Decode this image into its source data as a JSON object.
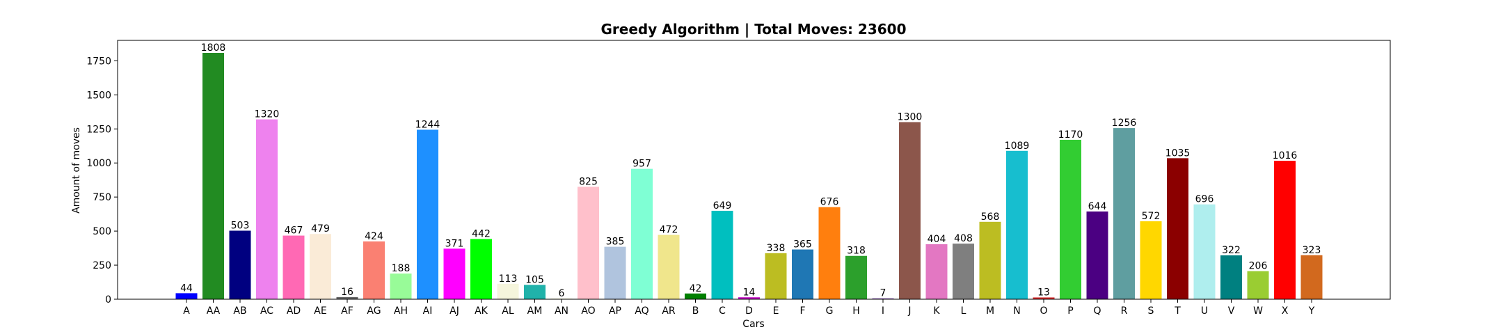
{
  "chart_data": {
    "type": "bar",
    "title": "Greedy Algorithm | Total Moves: 23600",
    "xlabel": "Cars",
    "ylabel": "Amount of moves",
    "ylim": [
      0,
      1900
    ],
    "yticks": [
      0,
      250,
      500,
      750,
      1000,
      1250,
      1500,
      1750
    ],
    "grid": false,
    "legend": "none",
    "categories": [
      "A",
      "AA",
      "AB",
      "AC",
      "AD",
      "AE",
      "AF",
      "AG",
      "AH",
      "AI",
      "AJ",
      "AK",
      "AL",
      "AM",
      "AN",
      "AO",
      "AP",
      "AQ",
      "AR",
      "B",
      "C",
      "D",
      "E",
      "F",
      "G",
      "H",
      "I",
      "J",
      "K",
      "L",
      "M",
      "N",
      "O",
      "P",
      "Q",
      "R",
      "S",
      "T",
      "U",
      "V",
      "W",
      "X",
      "Y"
    ],
    "values": [
      44,
      1808,
      503,
      1320,
      467,
      479,
      16,
      424,
      188,
      1244,
      371,
      442,
      113,
      105,
      6,
      825,
      385,
      957,
      472,
      42,
      649,
      14,
      338,
      365,
      676,
      318,
      7,
      1300,
      404,
      408,
      568,
      1089,
      13,
      1170,
      644,
      1256,
      572,
      1035,
      696,
      322,
      206,
      1016,
      323
    ],
    "colors": [
      "#0000ff",
      "#228b22",
      "#000080",
      "#ee82ee",
      "#ff69b4",
      "#faebd7",
      "#696969",
      "#fa8072",
      "#98fb98",
      "#1e90ff",
      "#ff00ff",
      "#00ff00",
      "#f5f5dc",
      "#20b2aa",
      "#f5f5dc",
      "#ffc0cb",
      "#b0c4de",
      "#7fffd4",
      "#f0e68c",
      "#008000",
      "#00bfbf",
      "#bf00bf",
      "#bcbd22",
      "#1f77b4",
      "#ff7f0e",
      "#2ca02c",
      "#9467bd",
      "#8c564b",
      "#e377c2",
      "#7f7f7f",
      "#bcbd22",
      "#17becf",
      "#d62728",
      "#32cd32",
      "#4b0082",
      "#5f9ea0",
      "#ffd700",
      "#8b0000",
      "#afeeee",
      "#008080",
      "#9acd32",
      "#ff0000",
      "#d2691e"
    ]
  }
}
